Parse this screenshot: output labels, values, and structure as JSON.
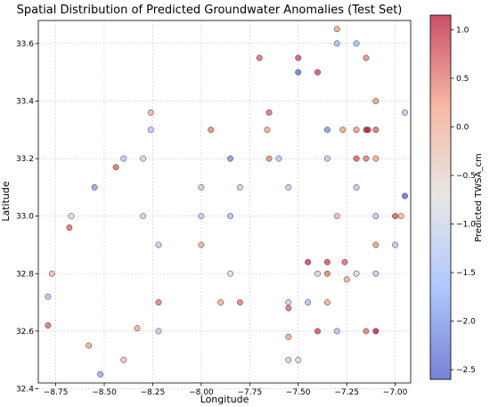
{
  "chart_data": {
    "type": "scatter",
    "title": "Spatial Distribution of Predicted Groundwater Anomalies (Test Set)",
    "xlabel": "Longitude",
    "ylabel": "Latitude",
    "xlim": [
      -8.84,
      -6.92
    ],
    "ylim": [
      32.42,
      33.68
    ],
    "xticks": [
      -8.75,
      -8.5,
      -8.25,
      -8.0,
      -7.75,
      -7.5,
      -7.25,
      -7.0
    ],
    "xtick_labels": [
      "−8.75",
      "−8.50",
      "−8.25",
      "−8.00",
      "−7.75",
      "−7.50",
      "−7.25",
      "−7.00"
    ],
    "yticks": [
      32.4,
      32.6,
      32.8,
      33.0,
      33.2,
      33.4,
      33.6
    ],
    "ytick_labels": [
      "32.4",
      "32.6",
      "32.8",
      "33.0",
      "33.2",
      "33.4",
      "33.6"
    ],
    "grid": true,
    "colorbar": {
      "label": "Predicted TWSA_cm",
      "colormap": "coolwarm",
      "min": -2.6,
      "max": 1.15,
      "ticks": [
        1.0,
        0.5,
        0.0,
        -0.5,
        -1.0,
        -1.5,
        -2.0,
        -2.5
      ],
      "tick_labels": [
        "1.0",
        "0.5",
        "0.0",
        "−0.5",
        "−1.0",
        "−1.5",
        "−2.0",
        "−2.5"
      ]
    },
    "points": [
      {
        "x": -8.79,
        "y": 32.72,
        "v": -1.5
      },
      {
        "x": -8.79,
        "y": 32.62,
        "v": 0.6
      },
      {
        "x": -8.77,
        "y": 32.8,
        "v": -0.1
      },
      {
        "x": -8.67,
        "y": 33.0,
        "v": -0.8
      },
      {
        "x": -8.68,
        "y": 32.96,
        "v": 0.6
      },
      {
        "x": -8.58,
        "y": 32.55,
        "v": 0.2
      },
      {
        "x": -8.55,
        "y": 33.1,
        "v": -1.9
      },
      {
        "x": -8.52,
        "y": 32.45,
        "v": -1.8
      },
      {
        "x": -8.44,
        "y": 33.17,
        "v": 0.6
      },
      {
        "x": -8.4,
        "y": 33.2,
        "v": -1.3
      },
      {
        "x": -8.4,
        "y": 32.5,
        "v": -0.2
      },
      {
        "x": -8.33,
        "y": 32.61,
        "v": 0.1
      },
      {
        "x": -8.3,
        "y": 33.2,
        "v": -1.0
      },
      {
        "x": -8.3,
        "y": 33.0,
        "v": -1.0
      },
      {
        "x": -8.26,
        "y": 33.36,
        "v": 0.1
      },
      {
        "x": -8.26,
        "y": 33.3,
        "v": -1.3
      },
      {
        "x": -8.22,
        "y": 32.9,
        "v": -1.2
      },
      {
        "x": -8.22,
        "y": 32.7,
        "v": 0.5
      },
      {
        "x": -8.22,
        "y": 32.6,
        "v": -1.2
      },
      {
        "x": -8.0,
        "y": 33.1,
        "v": -1.1
      },
      {
        "x": -8.0,
        "y": 33.0,
        "v": -1.2
      },
      {
        "x": -8.0,
        "y": 32.9,
        "v": 0.1
      },
      {
        "x": -7.95,
        "y": 33.3,
        "v": 0.4
      },
      {
        "x": -7.9,
        "y": 32.7,
        "v": 0.1
      },
      {
        "x": -7.85,
        "y": 33.2,
        "v": -2.0
      },
      {
        "x": -7.85,
        "y": 33.0,
        "v": -1.5
      },
      {
        "x": -7.85,
        "y": 32.8,
        "v": -0.8
      },
      {
        "x": -7.8,
        "y": 33.1,
        "v": -1.1
      },
      {
        "x": -7.8,
        "y": 32.7,
        "v": 0.5
      },
      {
        "x": -7.7,
        "y": 33.55,
        "v": 0.6
      },
      {
        "x": -7.65,
        "y": 33.36,
        "v": 0.6
      },
      {
        "x": -7.66,
        "y": 33.3,
        "v": 0.2
      },
      {
        "x": -7.65,
        "y": 33.2,
        "v": 0.4
      },
      {
        "x": -7.6,
        "y": 33.2,
        "v": -1.3
      },
      {
        "x": -7.55,
        "y": 33.1,
        "v": -1.2
      },
      {
        "x": -7.55,
        "y": 32.7,
        "v": -1.2
      },
      {
        "x": -7.55,
        "y": 32.68,
        "v": 0.6
      },
      {
        "x": -7.55,
        "y": 32.58,
        "v": 0.2
      },
      {
        "x": -7.55,
        "y": 32.5,
        "v": -1.0
      },
      {
        "x": -7.5,
        "y": 33.55,
        "v": 0.8
      },
      {
        "x": -7.5,
        "y": 33.5,
        "v": -2.3
      },
      {
        "x": -7.5,
        "y": 32.5,
        "v": -0.9
      },
      {
        "x": -7.45,
        "y": 32.84,
        "v": 0.9
      },
      {
        "x": -7.45,
        "y": 32.7,
        "v": -1.4
      },
      {
        "x": -7.4,
        "y": 33.5,
        "v": 0.8
      },
      {
        "x": -7.4,
        "y": 32.8,
        "v": -1.0
      },
      {
        "x": -7.4,
        "y": 32.6,
        "v": 0.8
      },
      {
        "x": -7.35,
        "y": 33.3,
        "v": -2.0
      },
      {
        "x": -7.35,
        "y": 33.2,
        "v": -1.2
      },
      {
        "x": -7.35,
        "y": 32.84,
        "v": 0.8
      },
      {
        "x": -7.35,
        "y": 32.8,
        "v": 0.5
      },
      {
        "x": -7.35,
        "y": 32.7,
        "v": 0.2
      },
      {
        "x": -7.3,
        "y": 33.65,
        "v": 0.2
      },
      {
        "x": -7.3,
        "y": 33.6,
        "v": -1.6
      },
      {
        "x": -7.3,
        "y": 33.0,
        "v": -0.1
      },
      {
        "x": -7.3,
        "y": 32.6,
        "v": -1.4
      },
      {
        "x": -7.27,
        "y": 33.3,
        "v": 0.2
      },
      {
        "x": -7.26,
        "y": 32.84,
        "v": 0.6
      },
      {
        "x": -7.25,
        "y": 32.78,
        "v": 0.1
      },
      {
        "x": -7.2,
        "y": 33.6,
        "v": -1.6
      },
      {
        "x": -7.2,
        "y": 33.3,
        "v": 0.3
      },
      {
        "x": -7.2,
        "y": 33.2,
        "v": 0.7
      },
      {
        "x": -7.2,
        "y": 33.1,
        "v": -1.2
      },
      {
        "x": -7.2,
        "y": 32.8,
        "v": -0.9
      },
      {
        "x": -7.15,
        "y": 33.55,
        "v": 0.4
      },
      {
        "x": -7.15,
        "y": 33.3,
        "v": 0.9
      },
      {
        "x": -7.15,
        "y": 33.2,
        "v": 0.5
      },
      {
        "x": -7.15,
        "y": 32.6,
        "v": 0.5
      },
      {
        "x": -7.14,
        "y": 33.3,
        "v": 1.0
      },
      {
        "x": -7.1,
        "y": 33.4,
        "v": 0.3
      },
      {
        "x": -7.1,
        "y": 33.3,
        "v": 0.6
      },
      {
        "x": -7.1,
        "y": 33.2,
        "v": 0.2
      },
      {
        "x": -7.1,
        "y": 33.0,
        "v": -1.3
      },
      {
        "x": -7.1,
        "y": 32.9,
        "v": 0.3
      },
      {
        "x": -7.1,
        "y": 32.8,
        "v": -1.2
      },
      {
        "x": -7.1,
        "y": 32.6,
        "v": 1.1
      },
      {
        "x": -7.0,
        "y": 33.0,
        "v": 0.7
      },
      {
        "x": -7.0,
        "y": 32.9,
        "v": -1.3
      },
      {
        "x": -6.97,
        "y": 33.0,
        "v": 0.0
      },
      {
        "x": -6.95,
        "y": 33.36,
        "v": -1.3
      },
      {
        "x": -6.95,
        "y": 33.07,
        "v": -2.4
      }
    ]
  }
}
